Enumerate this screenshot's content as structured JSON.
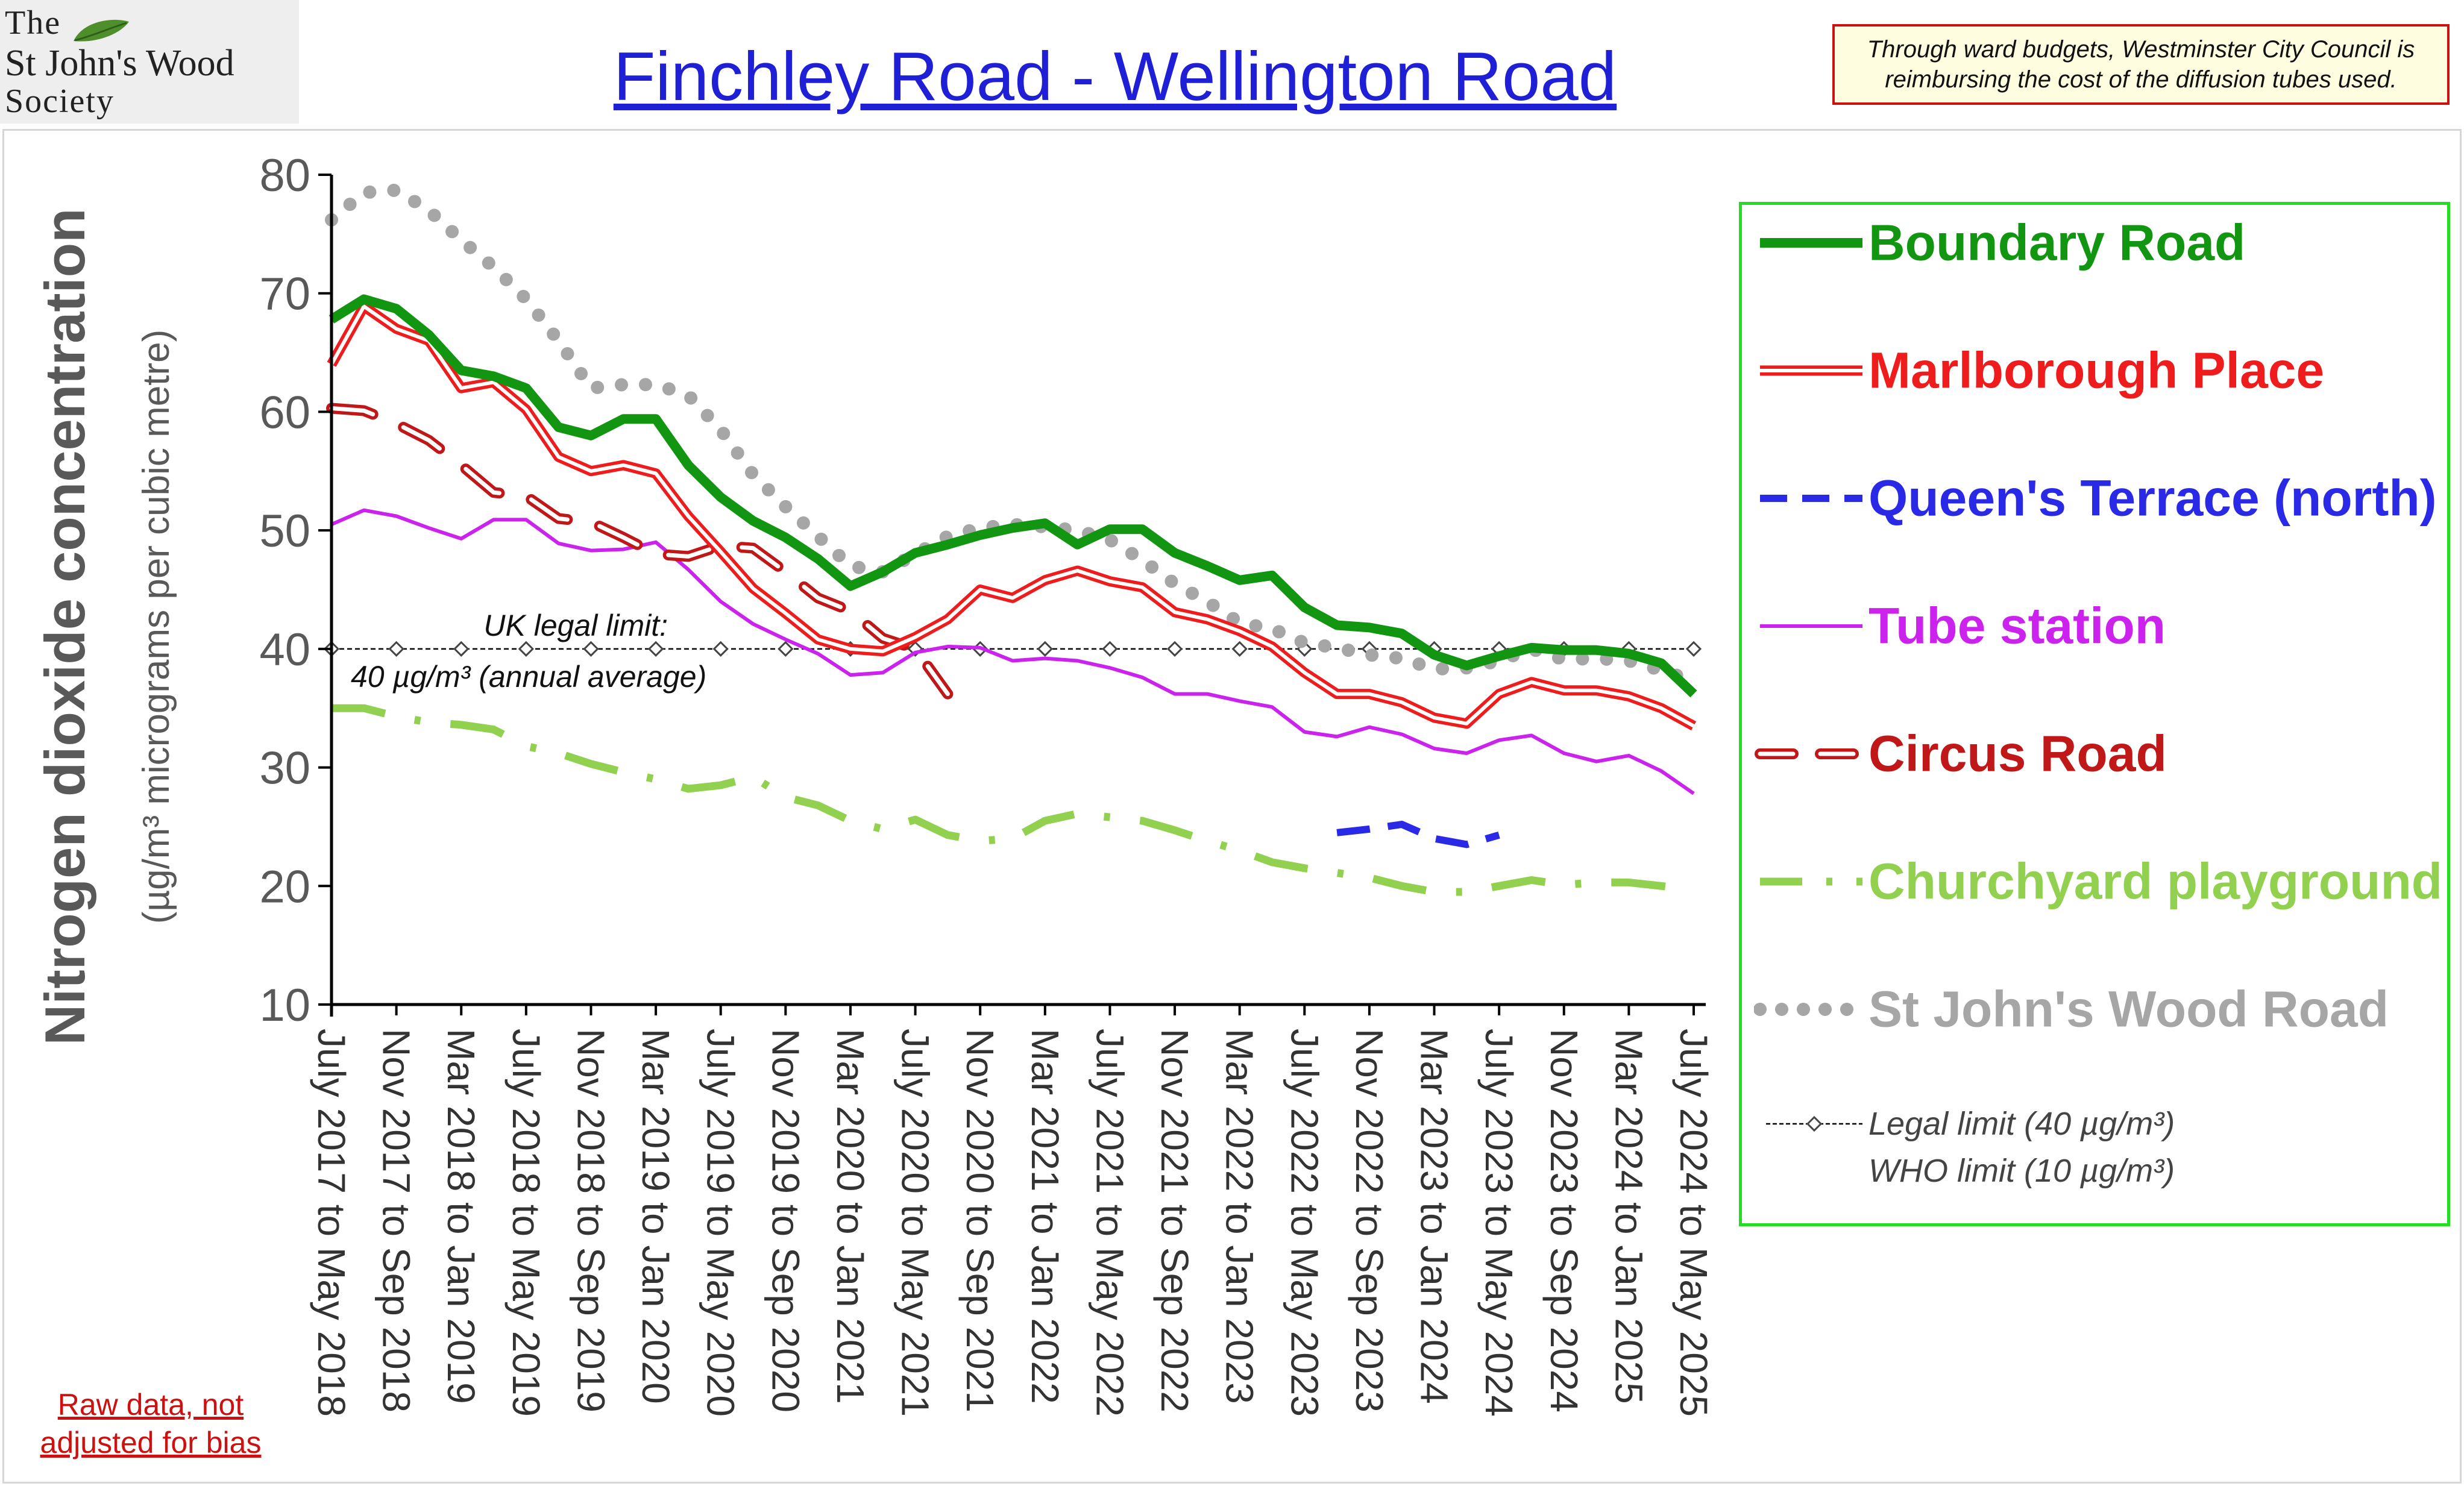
{
  "logo": {
    "line1": "The",
    "line2": "St John's Wood",
    "line3": "Society"
  },
  "title": "Finchley Road - Wellington Road",
  "funding_note": "Through ward budgets, Westminster City Council is reimbursing the cost of the diffusion tubes used.",
  "bias_note": "Raw data, not adjusted for bias",
  "legal_limit_annotation": {
    "line1": "UK legal limit:",
    "line2": "40 µg/m³ (annual average)"
  },
  "legend": {
    "limit_notes": [
      "Legal limit  (40 µg/m³)",
      "WHO limit  (10 µg/m³)"
    ]
  },
  "colors": {
    "boundary": "#129612",
    "marlborough": "#ee1c1c",
    "queens": "#2a2ae6",
    "tube": "#cc22ee",
    "circus": "#c01818",
    "churchyard": "#92d050",
    "stjohns": "#a6a6a6",
    "limit": "#000000"
  },
  "chart_data": {
    "type": "line",
    "ylabel_main": "Nitrogen dioxide concentration",
    "ylabel_sub": "(µg/m³ micrograms per cubic metre)",
    "ylim": [
      10,
      80
    ],
    "yticks": [
      10,
      20,
      30,
      40,
      50,
      60,
      70,
      80
    ],
    "xlabels": [
      "July 2017 to May 2018",
      "Nov 2017 to Sep 2018",
      "Mar 2018 to Jan 2019",
      "July 2018 to May 2019",
      "Nov 2018 to Sep 2019",
      "Mar 2019 to Jan 2020",
      "July 2019 to May 2020",
      "Nov 2019 to Sep 2020",
      "Mar 2020 to Jan 2021",
      "July 2020 to May 2021",
      "Nov 2020 to Sep 2021",
      "Mar 2021 to Jan 2022",
      "July 2021 to May 2022",
      "Nov 2021 to Sep 2022",
      "Mar 2022 to Jan 2023",
      "July 2022 to May 2023",
      "Nov 2022 to Sep 2023",
      "Mar 2023 to Jan 2024",
      "July 2023 to May 2024",
      "Nov 2023 to Sep 2024",
      "Mar 2024 to Jan 2025",
      "July 2024 to May 2025"
    ],
    "n_points": 43,
    "series": [
      {
        "name": "Boundary Road",
        "key": "boundary",
        "start": 0,
        "values": [
          67.8,
          69.5,
          68.7,
          66.5,
          63.5,
          63.0,
          62.0,
          58.7,
          58.0,
          59.4,
          59.4,
          55.5,
          52.8,
          50.8,
          49.4,
          47.6,
          45.3,
          46.5,
          48.1,
          48.8,
          49.6,
          50.2,
          50.6,
          48.8,
          50.1,
          50.1,
          48.1,
          47.0,
          45.8,
          46.2,
          43.5,
          42.0,
          41.8,
          41.3,
          39.5,
          38.6,
          39.4,
          40.1,
          39.9,
          39.9,
          39.6,
          38.8,
          36.2
        ]
      },
      {
        "name": "Marlborough Place",
        "key": "marlborough",
        "start": 0,
        "values": [
          64.0,
          68.9,
          67.0,
          66.0,
          62.0,
          62.5,
          60.2,
          56.2,
          55.0,
          55.5,
          54.8,
          51.2,
          48.2,
          45.1,
          43.0,
          40.8,
          40.0,
          39.8,
          41.0,
          42.5,
          45.0,
          44.3,
          45.8,
          46.6,
          45.7,
          45.2,
          43.1,
          42.5,
          41.5,
          40.2,
          38.0,
          36.2,
          36.2,
          35.5,
          34.2,
          33.7,
          36.2,
          37.2,
          36.5,
          36.5,
          36.0,
          35.0,
          33.5
        ]
      },
      {
        "name": "Queen's Terrace (north)",
        "key": "queens",
        "start": 31,
        "values": [
          24.5,
          24.8,
          25.2,
          24.0,
          23.5,
          24.3
        ]
      },
      {
        "name": "Tube station",
        "key": "tube",
        "start": 0,
        "values": [
          50.5,
          51.7,
          51.2,
          50.2,
          49.3,
          50.9,
          50.9,
          48.9,
          48.3,
          48.4,
          49.0,
          46.7,
          44.0,
          42.1,
          40.8,
          39.6,
          37.8,
          38.0,
          39.7,
          40.2,
          40.1,
          39.0,
          39.2,
          39.0,
          38.4,
          37.6,
          36.2,
          36.2,
          35.6,
          35.1,
          33.0,
          32.6,
          33.4,
          32.8,
          31.6,
          31.2,
          32.3,
          32.7,
          31.2,
          30.5,
          31.0,
          29.7,
          27.8
        ]
      },
      {
        "name": "Circus Road",
        "key": "circus",
        "start": 0,
        "values": [
          60.3,
          60.1,
          59.0,
          57.6,
          55.5,
          53.2,
          52.9,
          51.0,
          50.7,
          49.4,
          48.0,
          47.8,
          48.7,
          48.5,
          46.5,
          44.3,
          43.2,
          40.9,
          40.0,
          36.2
        ]
      },
      {
        "name": "Churchyard playground",
        "key": "churchyard",
        "start": 0,
        "values": [
          35.0,
          35.0,
          34.3,
          33.8,
          33.6,
          33.2,
          31.8,
          31.2,
          30.3,
          29.6,
          29.0,
          28.2,
          28.5,
          29.2,
          27.5,
          26.8,
          25.5,
          24.8,
          25.6,
          24.3,
          23.8,
          24.0,
          25.5,
          26.1,
          25.8,
          25.5,
          24.7,
          23.8,
          23.0,
          22.0,
          21.5,
          21.1,
          20.7,
          20.0,
          19.5,
          19.5,
          20.0,
          20.5,
          20.1,
          20.3,
          20.3,
          20.0,
          19.7
        ]
      },
      {
        "name": "St John's Wood Road",
        "key": "stjohns",
        "start": 0,
        "values": [
          76.2,
          78.5,
          78.7,
          77.0,
          74.5,
          72.2,
          69.5,
          66.0,
          62.0,
          62.3,
          62.3,
          61.4,
          58.5,
          54.7,
          52.0,
          49.5,
          47.0,
          46.5,
          48.0,
          49.5,
          50.2,
          50.5,
          50.3,
          50.0,
          49.2,
          47.5,
          45.5,
          44.0,
          42.2,
          41.7,
          40.5,
          40.1,
          39.5,
          39.2,
          38.3,
          38.4,
          39.0,
          40.0,
          39.1,
          39.2,
          39.0,
          38.2,
          37.3
        ]
      }
    ],
    "reference_lines": [
      {
        "name": "Legal limit",
        "value": 40
      }
    ],
    "legend_position": "right"
  }
}
